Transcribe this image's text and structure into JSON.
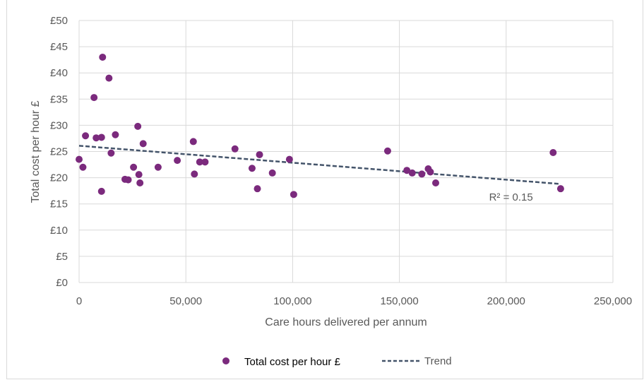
{
  "chart_data": {
    "type": "scatter",
    "title": "",
    "xlabel": "Care hours delivered per annum",
    "ylabel": "Total cost per hour £",
    "xlim": [
      0,
      250000
    ],
    "ylim": [
      0,
      50
    ],
    "x_ticks": [
      "0",
      "50,000",
      "100,000",
      "150,000",
      "200,000",
      "250,000"
    ],
    "y_ticks": [
      "£0",
      "£5",
      "£10",
      "£15",
      "£20",
      "£25",
      "£30",
      "£35",
      "£40",
      "£45",
      "£50"
    ],
    "grid": true,
    "legend_position": "bottom",
    "series": [
      {
        "name": "Total cost per hour £",
        "color": "#7b2a7d",
        "points": [
          [
            0,
            23.5
          ],
          [
            1800,
            22.0
          ],
          [
            3000,
            28.0
          ],
          [
            7000,
            35.3
          ],
          [
            8000,
            27.6
          ],
          [
            10500,
            27.7
          ],
          [
            11000,
            43.0
          ],
          [
            10500,
            17.4
          ],
          [
            14000,
            39.0
          ],
          [
            15000,
            24.7
          ],
          [
            17000,
            28.2
          ],
          [
            21500,
            19.7
          ],
          [
            23000,
            19.6
          ],
          [
            25500,
            22.0
          ],
          [
            27500,
            29.8
          ],
          [
            28000,
            20.6
          ],
          [
            28500,
            19.0
          ],
          [
            30000,
            26.5
          ],
          [
            37000,
            22.0
          ],
          [
            46000,
            23.3
          ],
          [
            53500,
            26.9
          ],
          [
            54000,
            20.7
          ],
          [
            56500,
            23.0
          ],
          [
            59000,
            23.0
          ],
          [
            73000,
            25.5
          ],
          [
            81000,
            21.8
          ],
          [
            83500,
            17.9
          ],
          [
            84500,
            24.4
          ],
          [
            90500,
            20.9
          ],
          [
            98500,
            23.5
          ],
          [
            100500,
            16.8
          ],
          [
            144500,
            25.1
          ],
          [
            153500,
            21.4
          ],
          [
            156000,
            20.9
          ],
          [
            160500,
            20.7
          ],
          [
            163500,
            21.7
          ],
          [
            164500,
            21.1
          ],
          [
            167000,
            19.0
          ],
          [
            222000,
            24.8
          ],
          [
            225500,
            17.9
          ]
        ]
      },
      {
        "name": "Trend",
        "color": "#44546a",
        "style": "dashed",
        "line": [
          [
            0,
            26.1
          ],
          [
            225500,
            18.8
          ]
        ]
      }
    ],
    "annotations": [
      {
        "text": "R² = 0.15",
        "x": 192000,
        "y": 15.6
      }
    ]
  }
}
